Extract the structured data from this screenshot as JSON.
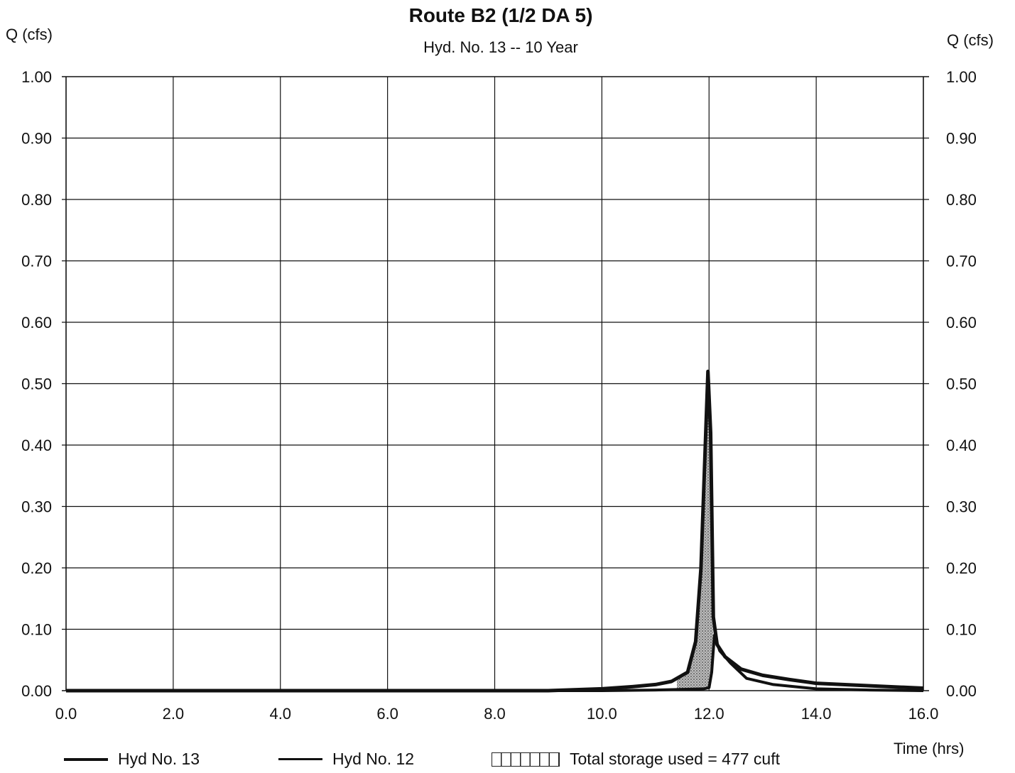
{
  "chart_data": {
    "type": "line",
    "title": "Route B2 (1/2 DA 5)",
    "subtitle": "Hyd. No. 13 -- 10 Year",
    "ylabel_left": "Q (cfs)",
    "ylabel_right": "Q (cfs)",
    "xlabel": "Time (hrs)",
    "xlim": [
      0,
      16
    ],
    "ylim": [
      0,
      1
    ],
    "x_ticks": [
      "0.0",
      "2.0",
      "4.0",
      "6.0",
      "8.0",
      "10.0",
      "12.0",
      "14.0",
      "16.0"
    ],
    "y_ticks": [
      "0.00",
      "0.10",
      "0.20",
      "0.30",
      "0.40",
      "0.50",
      "0.60",
      "0.70",
      "0.80",
      "0.90",
      "1.00"
    ],
    "grid": true,
    "legend_position": "bottom",
    "series": [
      {
        "name": "Hyd No. 12",
        "style": "thick",
        "points": [
          [
            0,
            0
          ],
          [
            9,
            0
          ],
          [
            10,
            0.003
          ],
          [
            10.5,
            0.006
          ],
          [
            11,
            0.01
          ],
          [
            11.3,
            0.015
          ],
          [
            11.6,
            0.03
          ],
          [
            11.75,
            0.08
          ],
          [
            11.85,
            0.2
          ],
          [
            11.93,
            0.4
          ],
          [
            11.98,
            0.52
          ],
          [
            12.03,
            0.42
          ],
          [
            12.08,
            0.12
          ],
          [
            12.15,
            0.075
          ],
          [
            12.3,
            0.055
          ],
          [
            12.6,
            0.035
          ],
          [
            13.0,
            0.025
          ],
          [
            13.5,
            0.018
          ],
          [
            14,
            0.012
          ],
          [
            15,
            0.008
          ],
          [
            16,
            0.004
          ]
        ]
      },
      {
        "name": "Hyd No. 13",
        "style": "thin",
        "points": [
          [
            0,
            0
          ],
          [
            10,
            0
          ],
          [
            11,
            0.001
          ],
          [
            11.9,
            0.003
          ],
          [
            12.0,
            0.005
          ],
          [
            12.05,
            0.03
          ],
          [
            12.1,
            0.09
          ],
          [
            12.2,
            0.065
          ],
          [
            12.4,
            0.045
          ],
          [
            12.7,
            0.02
          ],
          [
            13.2,
            0.01
          ],
          [
            14,
            0.003
          ],
          [
            15,
            0.001
          ],
          [
            16,
            0
          ]
        ]
      }
    ],
    "storage_area": {
      "label": "Total storage used = 477 cuft",
      "value_cuft": 477
    }
  },
  "legend": {
    "item1": "Hyd No. 13",
    "item2": "Hyd No. 12",
    "item3": "Total storage used = 477 cuft"
  }
}
